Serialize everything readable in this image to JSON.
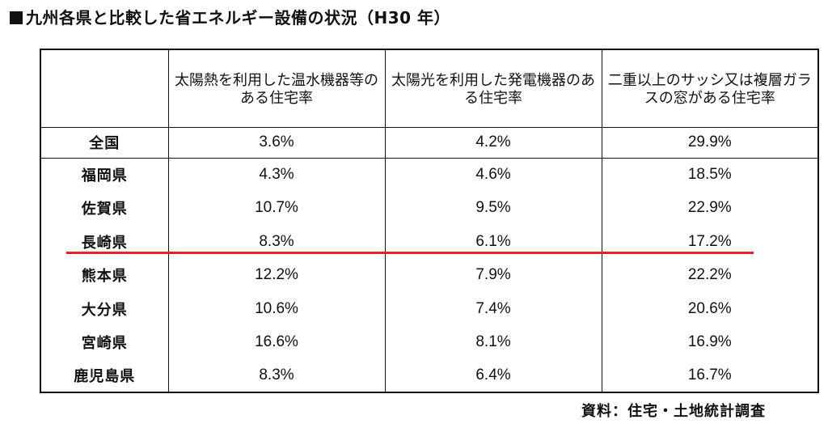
{
  "title": "九州各県と比較した省エネルギー設備の状況（H30 年）",
  "headers": [
    "",
    "太陽熱を利用した温水機器等のある住宅率",
    "太陽光を利用した発電機器のある住宅率",
    "二重以上のサッシ又は複層ガラスの窓がある住宅率"
  ],
  "national": {
    "name": "全国",
    "values": [
      "3.6%",
      "4.2%",
      "29.9%"
    ]
  },
  "rows": [
    {
      "name": "福岡県",
      "values": [
        "4.3%",
        "4.6%",
        "18.5%"
      ]
    },
    {
      "name": "佐賀県",
      "values": [
        "10.7%",
        "9.5%",
        "22.9%"
      ]
    },
    {
      "name": "長崎県",
      "values": [
        "8.3%",
        "6.1%",
        "17.2%"
      ]
    },
    {
      "name": "熊本県",
      "values": [
        "12.2%",
        "7.9%",
        "22.2%"
      ]
    },
    {
      "name": "大分県",
      "values": [
        "10.6%",
        "7.4%",
        "20.6%"
      ]
    },
    {
      "name": "宮崎県",
      "values": [
        "16.6%",
        "8.1%",
        "16.9%"
      ]
    },
    {
      "name": "鹿児島県",
      "values": [
        "8.3%",
        "6.4%",
        "16.7%"
      ]
    }
  ],
  "highlight_color": "#e8202a",
  "source": "資料：住宅・土地統計調査"
}
